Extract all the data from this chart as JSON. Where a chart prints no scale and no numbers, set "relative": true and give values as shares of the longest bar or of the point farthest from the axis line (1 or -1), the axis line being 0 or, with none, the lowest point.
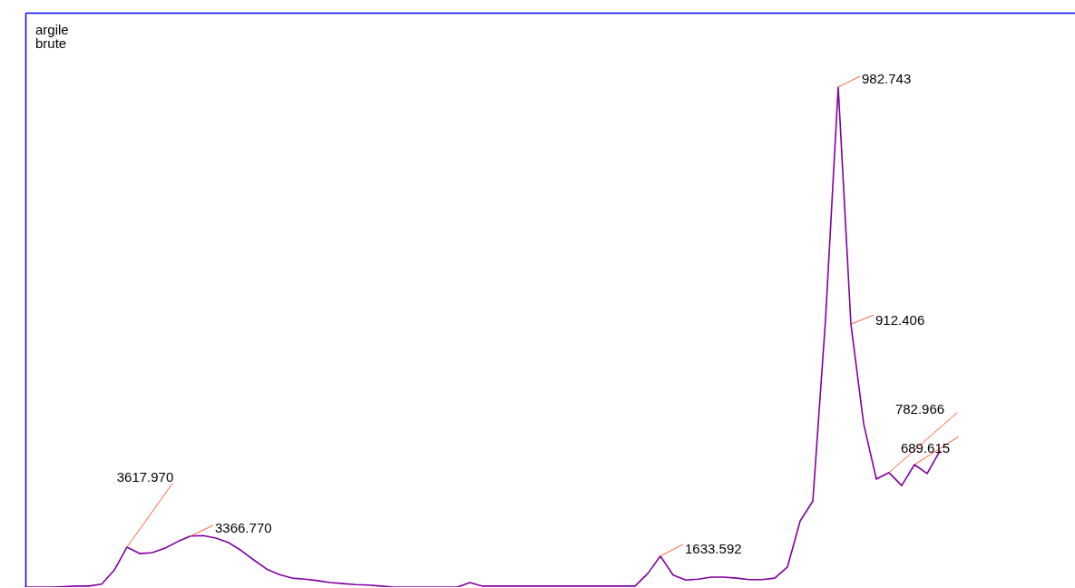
{
  "chart_data": {
    "type": "line",
    "title": "argile\nbrute",
    "relative": true,
    "categories": [
      null,
      null,
      null,
      null,
      null,
      null,
      null,
      null,
      null,
      null,
      null,
      null,
      null,
      null,
      null,
      null,
      null,
      null,
      null,
      null,
      null,
      null,
      null,
      null,
      null,
      null,
      null,
      null,
      null,
      null,
      null,
      null,
      null,
      null,
      null,
      null,
      null,
      null,
      null,
      null,
      null,
      null,
      null,
      null,
      null,
      null,
      null,
      null,
      null,
      null,
      null,
      null,
      null,
      null,
      null,
      null,
      null,
      null,
      null,
      null,
      null,
      null,
      null,
      null,
      null,
      null,
      null,
      null,
      null,
      null,
      null,
      null,
      null
    ],
    "series": [
      {
        "color": "#8000a0",
        "values": [
          0,
          0,
          0,
          0.001,
          0.002,
          0.002,
          0.006,
          0.034,
          0.08,
          0.067,
          0.069,
          0.078,
          0.091,
          0.102,
          0.103,
          0.098,
          0.089,
          0.073,
          0.054,
          0.036,
          0.025,
          0.018,
          0.016,
          0.013,
          0.009,
          0.007,
          0.005,
          0.004,
          0.002,
          0,
          0,
          0,
          0,
          0,
          0,
          0.009,
          0.002,
          0.002,
          0.002,
          0.002,
          0.002,
          0.002,
          0.002,
          0.002,
          0.002,
          0.002,
          0.002,
          0.002,
          0.002,
          0.027,
          0.062,
          0.024,
          0.014,
          0.016,
          0.02,
          0.02,
          0.018,
          0.015,
          0.015,
          0.018,
          0.04,
          0.132,
          0.172,
          0.535,
          1,
          0.526,
          0.327,
          0.216,
          0.229,
          0.203,
          0.245,
          0.227,
          0.272
        ]
      }
    ],
    "grid": false,
    "marker": "none",
    "line_style": "solid",
    "annotations": [
      "3617.970",
      "3366.770",
      "1633.592",
      "982.743",
      "912.406",
      "782.966",
      "689.615"
    ]
  }
}
